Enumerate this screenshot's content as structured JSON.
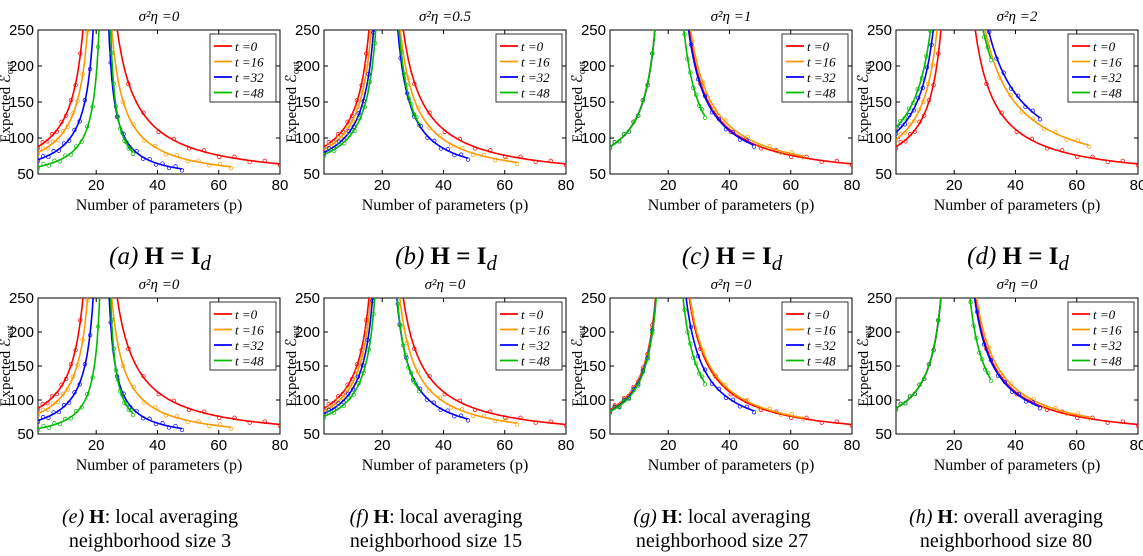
{
  "ylabel": "Expected ℰ",
  "ylabel_sub": "out",
  "xlabel": "Number of parameters (p)",
  "legend_labels": [
    "t =0",
    "t =16",
    "t =32",
    "t =48"
  ],
  "colors": {
    "t0": "#ff0000",
    "t16": "#ff9900",
    "t32": "#0000ff",
    "t48": "#00bb00"
  },
  "chart_data": [
    {
      "panel": "a",
      "type": "line",
      "title": "σ²η =0",
      "xlim": [
        1,
        80
      ],
      "ylim": [
        50,
        250
      ],
      "xticks": [
        20,
        40,
        60,
        80
      ],
      "yticks": [
        50,
        100,
        150,
        200,
        250
      ],
      "series": [
        {
          "name": "t =0",
          "xmax": 80,
          "peak": 20,
          "left_at_1": 88,
          "right_at_end": 64
        },
        {
          "name": "t =16",
          "xmax": 64,
          "peak": 21,
          "left_at_1": 80,
          "right_at_end": 60
        },
        {
          "name": "t =32",
          "xmax": 48,
          "peak": 22,
          "left_at_1": 70,
          "right_at_end": 57
        },
        {
          "name": "t =48",
          "xmax": 32,
          "peak": 23,
          "left_at_1": 60,
          "right_at_end": 80
        }
      ]
    },
    {
      "panel": "b",
      "type": "line",
      "title": "σ²η =0.5",
      "xlim": [
        1,
        80
      ],
      "ylim": [
        50,
        250
      ],
      "xticks": [
        20,
        40,
        60,
        80
      ],
      "yticks": [
        50,
        100,
        150,
        200,
        250
      ],
      "series": [
        {
          "name": "t =0",
          "xmax": 80,
          "peak": 20,
          "left_at_1": 88,
          "right_at_end": 64
        },
        {
          "name": "t =16",
          "xmax": 64,
          "peak": 20.5,
          "left_at_1": 84,
          "right_at_end": 66
        },
        {
          "name": "t =32",
          "xmax": 48,
          "peak": 21,
          "left_at_1": 80,
          "right_at_end": 72
        },
        {
          "name": "t =48",
          "xmax": 32,
          "peak": 21.5,
          "left_at_1": 77,
          "right_at_end": 120
        }
      ]
    },
    {
      "panel": "c",
      "type": "line",
      "title": "σ²η =1",
      "xlim": [
        1,
        80
      ],
      "ylim": [
        50,
        250
      ],
      "xticks": [
        20,
        40,
        60,
        80
      ],
      "yticks": [
        50,
        100,
        150,
        200,
        250
      ],
      "series": [
        {
          "name": "t =0",
          "xmax": 80,
          "peak": 20,
          "left_at_1": 88,
          "right_at_end": 64
        },
        {
          "name": "t =16",
          "xmax": 64,
          "peak": 20,
          "left_at_1": 88,
          "right_at_end": 75
        },
        {
          "name": "t =32",
          "xmax": 48,
          "peak": 20,
          "left_at_1": 88,
          "right_at_end": 90
        },
        {
          "name": "t =48",
          "xmax": 32,
          "peak": 20,
          "left_at_1": 88,
          "right_at_end": 130
        }
      ]
    },
    {
      "panel": "d",
      "type": "line",
      "title": "σ²η =2",
      "xlim": [
        1,
        80
      ],
      "ylim": [
        50,
        250
      ],
      "xticks": [
        20,
        40,
        60,
        80
      ],
      "yticks": [
        50,
        100,
        150,
        200,
        250
      ],
      "series": [
        {
          "name": "t =0",
          "xmax": 80,
          "peak": 20,
          "left_at_1": 88,
          "right_at_end": 64
        },
        {
          "name": "t =16",
          "xmax": 64,
          "peak": 19.5,
          "left_at_1": 98,
          "right_at_end": 90
        },
        {
          "name": "t =32",
          "xmax": 48,
          "peak": 19,
          "left_at_1": 108,
          "right_at_end": 128
        },
        {
          "name": "t =48",
          "xmax": 32,
          "peak": 18.5,
          "left_at_1": 115,
          "right_at_end": 210
        }
      ]
    },
    {
      "panel": "e",
      "type": "line",
      "title": "σ²η =0",
      "xlim": [
        1,
        80
      ],
      "ylim": [
        50,
        250
      ],
      "xticks": [
        20,
        40,
        60,
        80
      ],
      "yticks": [
        50,
        100,
        150,
        200,
        250
      ],
      "series": [
        {
          "name": "t =0",
          "xmax": 80,
          "peak": 20,
          "left_at_1": 88,
          "right_at_end": 64
        },
        {
          "name": "t =16",
          "xmax": 64,
          "peak": 21,
          "left_at_1": 80,
          "right_at_end": 60
        },
        {
          "name": "t =32",
          "xmax": 48,
          "peak": 22,
          "left_at_1": 70,
          "right_at_end": 58
        },
        {
          "name": "t =48",
          "xmax": 32,
          "peak": 23,
          "left_at_1": 58,
          "right_at_end": 80
        }
      ]
    },
    {
      "panel": "f",
      "type": "line",
      "title": "σ²η =0",
      "xlim": [
        1,
        80
      ],
      "ylim": [
        50,
        250
      ],
      "xticks": [
        20,
        40,
        60,
        80
      ],
      "yticks": [
        50,
        100,
        150,
        200,
        250
      ],
      "series": [
        {
          "name": "t =0",
          "xmax": 80,
          "peak": 20,
          "left_at_1": 88,
          "right_at_end": 64
        },
        {
          "name": "t =16",
          "xmax": 64,
          "peak": 20.3,
          "left_at_1": 84,
          "right_at_end": 66
        },
        {
          "name": "t =32",
          "xmax": 48,
          "peak": 20.6,
          "left_at_1": 80,
          "right_at_end": 72
        },
        {
          "name": "t =48",
          "xmax": 32,
          "peak": 21,
          "left_at_1": 76,
          "right_at_end": 115
        }
      ]
    },
    {
      "panel": "g",
      "type": "line",
      "title": "σ²η =0",
      "xlim": [
        1,
        80
      ],
      "ylim": [
        50,
        250
      ],
      "xticks": [
        20,
        40,
        60,
        80
      ],
      "yticks": [
        50,
        100,
        150,
        200,
        250
      ],
      "series": [
        {
          "name": "t =0",
          "xmax": 80,
          "peak": 20,
          "left_at_1": 86,
          "right_at_end": 64
        },
        {
          "name": "t =16",
          "xmax": 64,
          "peak": 20,
          "left_at_1": 85,
          "right_at_end": 74
        },
        {
          "name": "t =32",
          "xmax": 48,
          "peak": 20,
          "left_at_1": 84,
          "right_at_end": 84
        },
        {
          "name": "t =48",
          "xmax": 32,
          "peak": 20,
          "left_at_1": 83,
          "right_at_end": 125
        }
      ]
    },
    {
      "panel": "h",
      "type": "line",
      "title": "σ²η =0",
      "xlim": [
        1,
        80
      ],
      "ylim": [
        50,
        250
      ],
      "xticks": [
        20,
        40,
        60,
        80
      ],
      "yticks": [
        50,
        100,
        150,
        200,
        250
      ],
      "series": [
        {
          "name": "t =0",
          "xmax": 80,
          "peak": 20,
          "left_at_1": 88,
          "right_at_end": 64
        },
        {
          "name": "t =16",
          "xmax": 64,
          "peak": 20,
          "left_at_1": 88,
          "right_at_end": 75
        },
        {
          "name": "t =32",
          "xmax": 48,
          "peak": 20,
          "left_at_1": 88,
          "right_at_end": 90
        },
        {
          "name": "t =48",
          "xmax": 32,
          "peak": 20,
          "left_at_1": 88,
          "right_at_end": 130
        }
      ]
    }
  ],
  "captions_top": {
    "a": {
      "letter": "(a)",
      "text": "H = I",
      "sub": "d"
    },
    "b": {
      "letter": "(b)",
      "text": "H = I",
      "sub": "d"
    },
    "c": {
      "letter": "(c)",
      "text": "H = I",
      "sub": "d"
    },
    "d": {
      "letter": "(d)",
      "text": "H = I",
      "sub": "d"
    }
  },
  "captions_bottom": {
    "e": {
      "letter": "(e)",
      "H": "H",
      "line1": ": local averaging",
      "line2": "neighborhood size 3"
    },
    "f": {
      "letter": "(f)",
      "H": "H",
      "line1": ": local averaging",
      "line2": "neighborhood size 15"
    },
    "g": {
      "letter": "(g)",
      "H": "H",
      "line1": ": local averaging",
      "line2": "neighborhood size 27"
    },
    "h": {
      "letter": "(h)",
      "H": "H",
      "line1": ": overall averaging",
      "line2": "neighborhood size 80"
    }
  }
}
